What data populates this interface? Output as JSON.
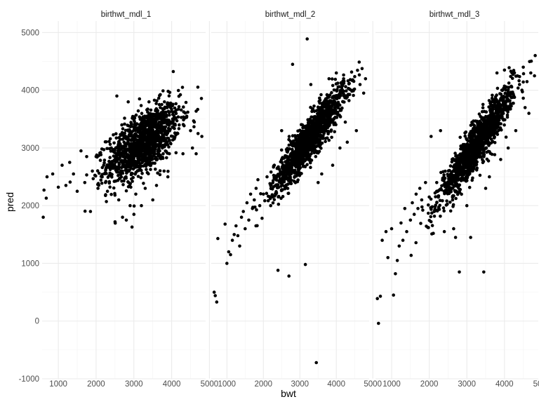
{
  "chart_data": {
    "type": "scatter",
    "xlabel": "bwt",
    "ylabel": "pred",
    "xlim": [
      570,
      4900
    ],
    "ylim": [
      -1000,
      5200
    ],
    "xticks": [
      "1000",
      "2000",
      "3000",
      "4000",
      "5000"
    ],
    "yticks": [
      "-1000",
      "0",
      "1000",
      "2000",
      "3000",
      "4000",
      "5000"
    ],
    "grid": true,
    "point_color": "#000000",
    "panels": [
      {
        "title": "birthwt_mdl_1",
        "cluster": {
          "x_mean": 3250,
          "x_sd": 480,
          "y_mean": 3100,
          "y_sd": 260,
          "slope": 0.42,
          "n": 1300
        },
        "points": [
          {
            "x": 600,
            "y": 1800
          },
          {
            "x": 620,
            "y": 2270
          },
          {
            "x": 680,
            "y": 2130
          },
          {
            "x": 700,
            "y": 2500
          },
          {
            "x": 850,
            "y": 2550
          },
          {
            "x": 1000,
            "y": 2320
          },
          {
            "x": 1100,
            "y": 2700
          },
          {
            "x": 1200,
            "y": 2350
          },
          {
            "x": 1300,
            "y": 2750
          },
          {
            "x": 1400,
            "y": 2550
          },
          {
            "x": 1500,
            "y": 2250
          },
          {
            "x": 1600,
            "y": 2950
          },
          {
            "x": 1700,
            "y": 2400
          },
          {
            "x": 1750,
            "y": 2850
          },
          {
            "x": 1850,
            "y": 1900
          },
          {
            "x": 1900,
            "y": 2600
          },
          {
            "x": 2000,
            "y": 2850
          },
          {
            "x": 2050,
            "y": 2300
          },
          {
            "x": 2200,
            "y": 2700
          },
          {
            "x": 2300,
            "y": 2250
          },
          {
            "x": 2500,
            "y": 1720
          },
          {
            "x": 2550,
            "y": 3900
          },
          {
            "x": 2600,
            "y": 2100
          },
          {
            "x": 2700,
            "y": 1800
          },
          {
            "x": 2800,
            "y": 1750
          },
          {
            "x": 2850,
            "y": 3800
          },
          {
            "x": 2900,
            "y": 2000
          },
          {
            "x": 2950,
            "y": 1630
          },
          {
            "x": 3000,
            "y": 1850
          },
          {
            "x": 3050,
            "y": 2200
          },
          {
            "x": 3150,
            "y": 3850
          },
          {
            "x": 3200,
            "y": 2000
          },
          {
            "x": 3300,
            "y": 2300
          },
          {
            "x": 3400,
            "y": 3800
          },
          {
            "x": 3500,
            "y": 2100
          },
          {
            "x": 3600,
            "y": 2350
          },
          {
            "x": 3700,
            "y": 3700
          },
          {
            "x": 3800,
            "y": 2600
          },
          {
            "x": 3900,
            "y": 2500
          },
          {
            "x": 4000,
            "y": 3750
          },
          {
            "x": 4200,
            "y": 3400
          },
          {
            "x": 4300,
            "y": 2900
          },
          {
            "x": 4400,
            "y": 3550
          },
          {
            "x": 4500,
            "y": 3300
          },
          {
            "x": 4550,
            "y": 3000
          },
          {
            "x": 4600,
            "y": 3450
          },
          {
            "x": 4650,
            "y": 2900
          },
          {
            "x": 4700,
            "y": 3250
          },
          {
            "x": 4800,
            "y": 3200
          }
        ]
      },
      {
        "title": "birthwt_mdl_2",
        "cluster": {
          "x_mean": 3250,
          "x_sd": 480,
          "y_mean": 3150,
          "y_sd": 180,
          "slope": 0.82,
          "n": 1400
        },
        "points": [
          {
            "x": 650,
            "y": 500
          },
          {
            "x": 680,
            "y": 440
          },
          {
            "x": 720,
            "y": 330
          },
          {
            "x": 750,
            "y": 1430
          },
          {
            "x": 950,
            "y": 1680
          },
          {
            "x": 1000,
            "y": 1000
          },
          {
            "x": 1050,
            "y": 1200
          },
          {
            "x": 1100,
            "y": 1150
          },
          {
            "x": 1150,
            "y": 1400
          },
          {
            "x": 1200,
            "y": 1500
          },
          {
            "x": 1250,
            "y": 1650
          },
          {
            "x": 1300,
            "y": 1480
          },
          {
            "x": 1350,
            "y": 1300
          },
          {
            "x": 1400,
            "y": 1800
          },
          {
            "x": 1450,
            "y": 1900
          },
          {
            "x": 1500,
            "y": 1600
          },
          {
            "x": 1550,
            "y": 2050
          },
          {
            "x": 1600,
            "y": 1750
          },
          {
            "x": 1650,
            "y": 2200
          },
          {
            "x": 1700,
            "y": 1950
          },
          {
            "x": 1750,
            "y": 2100
          },
          {
            "x": 1800,
            "y": 2300
          },
          {
            "x": 1850,
            "y": 2450
          },
          {
            "x": 1900,
            "y": 2000
          },
          {
            "x": 2000,
            "y": 2200
          },
          {
            "x": 2100,
            "y": 2500
          },
          {
            "x": 2200,
            "y": 2000
          },
          {
            "x": 2300,
            "y": 2700
          },
          {
            "x": 2400,
            "y": 880
          },
          {
            "x": 2500,
            "y": 3300
          },
          {
            "x": 2700,
            "y": 780
          },
          {
            "x": 2800,
            "y": 4450
          },
          {
            "x": 3150,
            "y": 980
          },
          {
            "x": 3200,
            "y": 4890
          },
          {
            "x": 3300,
            "y": 4100
          },
          {
            "x": 3450,
            "y": -720
          },
          {
            "x": 3500,
            "y": 2400
          },
          {
            "x": 3600,
            "y": 2550
          },
          {
            "x": 3800,
            "y": 4200
          },
          {
            "x": 3900,
            "y": 2700
          },
          {
            "x": 4000,
            "y": 4300
          },
          {
            "x": 4100,
            "y": 3000
          },
          {
            "x": 4200,
            "y": 4200
          },
          {
            "x": 4300,
            "y": 3100
          },
          {
            "x": 4450,
            "y": 4000
          },
          {
            "x": 4550,
            "y": 3300
          },
          {
            "x": 4650,
            "y": 4100
          },
          {
            "x": 4750,
            "y": 3950
          },
          {
            "x": 4800,
            "y": 4200
          }
        ]
      },
      {
        "title": "birthwt_mdl_3",
        "cluster": {
          "x_mean": 3250,
          "x_sd": 480,
          "y_mean": 3050,
          "y_sd": 180,
          "slope": 0.95,
          "n": 1400
        },
        "points": [
          {
            "x": 620,
            "y": 390
          },
          {
            "x": 650,
            "y": -40
          },
          {
            "x": 700,
            "y": 430
          },
          {
            "x": 750,
            "y": 1400
          },
          {
            "x": 850,
            "y": 1550
          },
          {
            "x": 900,
            "y": 1100
          },
          {
            "x": 1000,
            "y": 1600
          },
          {
            "x": 1050,
            "y": 450
          },
          {
            "x": 1100,
            "y": 820
          },
          {
            "x": 1150,
            "y": 1050
          },
          {
            "x": 1200,
            "y": 1300
          },
          {
            "x": 1250,
            "y": 1700
          },
          {
            "x": 1300,
            "y": 1400
          },
          {
            "x": 1350,
            "y": 1950
          },
          {
            "x": 1400,
            "y": 1550
          },
          {
            "x": 1500,
            "y": 1750
          },
          {
            "x": 1550,
            "y": 2050
          },
          {
            "x": 1600,
            "y": 1850
          },
          {
            "x": 1650,
            "y": 2200
          },
          {
            "x": 1700,
            "y": 1950
          },
          {
            "x": 1750,
            "y": 2300
          },
          {
            "x": 1800,
            "y": 2100
          },
          {
            "x": 1900,
            "y": 2400
          },
          {
            "x": 2000,
            "y": 2150
          },
          {
            "x": 2050,
            "y": 3200
          },
          {
            "x": 2200,
            "y": 2400
          },
          {
            "x": 2300,
            "y": 3300
          },
          {
            "x": 2400,
            "y": 1550
          },
          {
            "x": 2650,
            "y": 1600
          },
          {
            "x": 2700,
            "y": 1450
          },
          {
            "x": 2800,
            "y": 850
          },
          {
            "x": 3000,
            "y": 2000
          },
          {
            "x": 3100,
            "y": 1450
          },
          {
            "x": 3450,
            "y": 850
          },
          {
            "x": 3500,
            "y": 2300
          },
          {
            "x": 3600,
            "y": 2500
          },
          {
            "x": 3800,
            "y": 4300
          },
          {
            "x": 3900,
            "y": 2800
          },
          {
            "x": 4000,
            "y": 4350
          },
          {
            "x": 4100,
            "y": 3000
          },
          {
            "x": 4200,
            "y": 4300
          },
          {
            "x": 4300,
            "y": 3300
          },
          {
            "x": 4400,
            "y": 4100
          },
          {
            "x": 4500,
            "y": 4400
          },
          {
            "x": 4550,
            "y": 3700
          },
          {
            "x": 4600,
            "y": 4150
          },
          {
            "x": 4650,
            "y": 3600
          },
          {
            "x": 4700,
            "y": 4300
          },
          {
            "x": 4800,
            "y": 4250
          }
        ]
      }
    ]
  }
}
